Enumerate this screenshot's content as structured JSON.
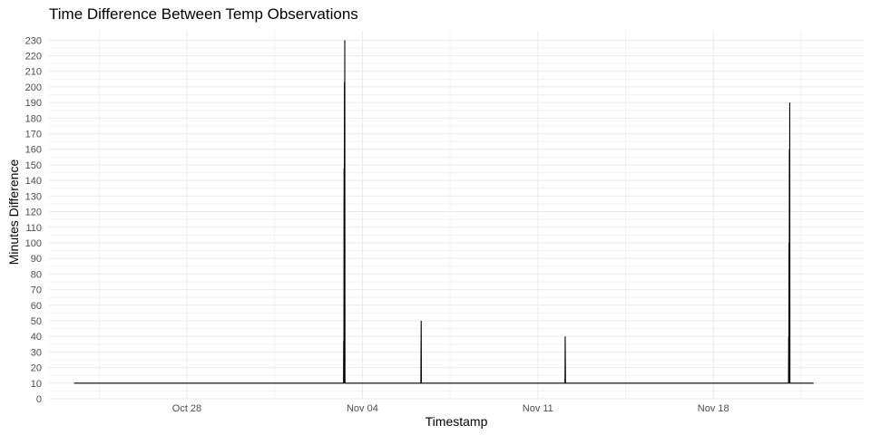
{
  "chart_data": {
    "type": "line",
    "title": "Time Difference Between Temp Observations",
    "xlabel": "Timestamp",
    "ylabel": "Minutes Difference",
    "x_ticks": [
      "Oct 28",
      "Nov 04",
      "Nov 11",
      "Nov 18"
    ],
    "y_ticks": [
      "0",
      "10",
      "20",
      "30",
      "40",
      "50",
      "60",
      "70",
      "80",
      "90",
      "100",
      "110",
      "120",
      "130",
      "140",
      "150",
      "160",
      "170",
      "180",
      "190",
      "200",
      "210",
      "220",
      "230"
    ],
    "ylim": [
      0,
      236
    ],
    "xlim": [
      "2023-10-22T12:00",
      "2023-11-24T00:00"
    ],
    "grid": true,
    "line_color": "#000000",
    "series": [
      {
        "x": [
          "2023-10-23T12:00",
          "2023-11-03T06:00",
          "2023-11-03T06:10",
          "2023-11-03T06:20",
          "2023-11-03T06:30",
          "2023-11-03T06:40",
          "2023-11-03T06:50",
          "2023-11-03T07:00",
          "2023-11-03T07:10",
          "2023-11-03T07:20",
          "2023-11-03T07:30",
          "2023-11-06T08:00",
          "2023-11-06T08:10",
          "2023-11-06T08:20",
          "2023-11-06T08:30",
          "2023-11-12T02:00",
          "2023-11-12T02:10",
          "2023-11-12T02:20",
          "2023-11-12T02:30",
          "2023-11-21T00:00",
          "2023-11-21T00:10",
          "2023-11-21T00:20",
          "2023-11-21T00:30",
          "2023-11-21T00:40",
          "2023-11-21T00:50",
          "2023-11-21T01:00",
          "2023-11-21T01:10",
          "2023-11-21T01:20",
          "2023-11-22T00:00"
        ],
        "y": [
          10,
          10,
          37,
          10,
          148,
          10,
          203,
          10,
          230,
          10,
          10,
          10,
          30,
          50,
          10,
          10,
          40,
          25,
          10,
          10,
          40,
          10,
          100,
          10,
          160,
          10,
          190,
          10,
          10
        ]
      }
    ]
  }
}
